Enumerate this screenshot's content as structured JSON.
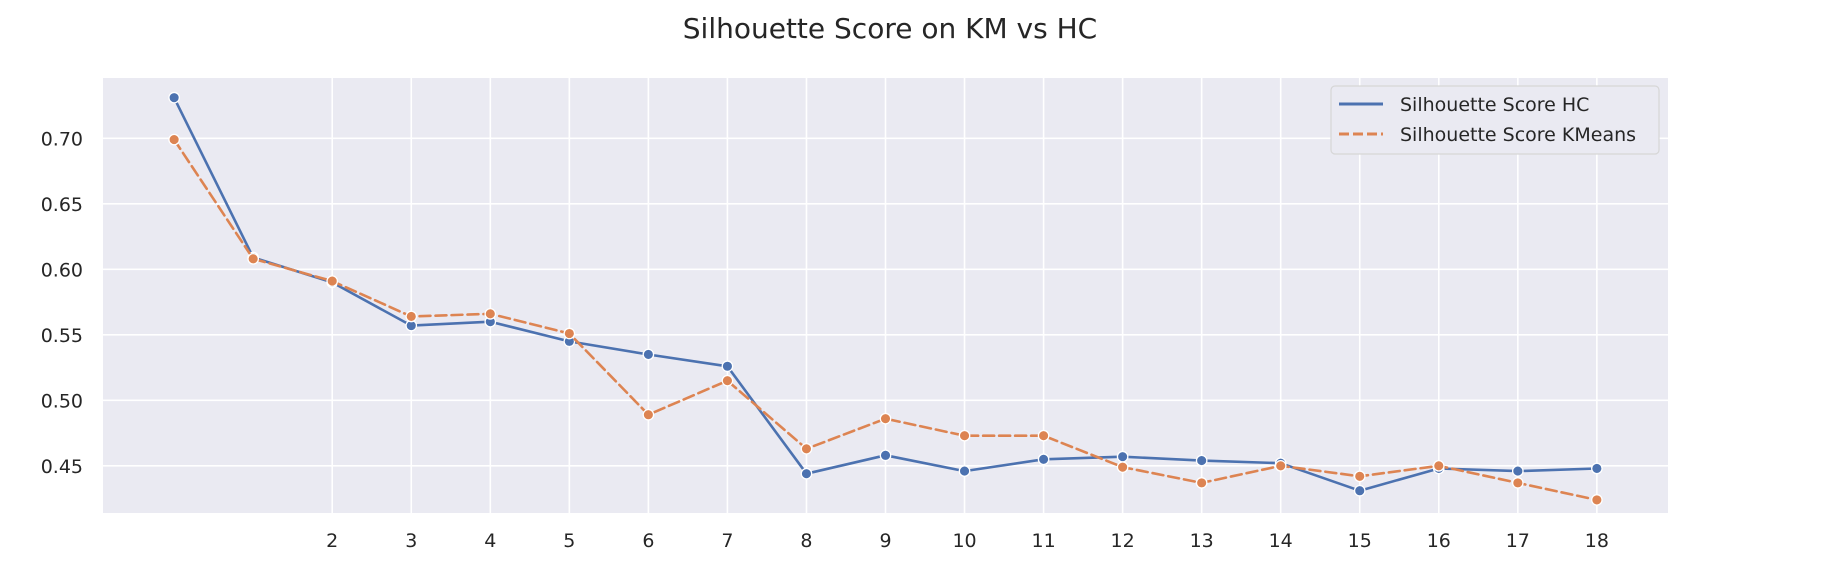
{
  "chart_data": {
    "type": "line",
    "title": "Silhouette Score on KM vs HC",
    "xlabel": "",
    "ylabel": "",
    "x": [
      0,
      1,
      2,
      3,
      4,
      5,
      6,
      7,
      8,
      9,
      10,
      11,
      12,
      13,
      14,
      15,
      16,
      17,
      18
    ],
    "x_tick_labels": [
      "2",
      "3",
      "4",
      "5",
      "6",
      "7",
      "8",
      "9",
      "10",
      "11",
      "12",
      "13",
      "14",
      "15",
      "16",
      "17",
      "18"
    ],
    "x_tick_values": [
      2,
      3,
      4,
      5,
      6,
      7,
      8,
      9,
      10,
      11,
      12,
      13,
      14,
      15,
      16,
      17,
      18
    ],
    "y_tick_labels": [
      "0.45",
      "0.50",
      "0.55",
      "0.60",
      "0.65",
      "0.70"
    ],
    "y_tick_values": [
      0.45,
      0.5,
      0.55,
      0.6,
      0.65,
      0.7
    ],
    "xlim": [
      -0.9,
      18.9
    ],
    "ylim": [
      0.414,
      0.746
    ],
    "grid": true,
    "legend_position": "top-right",
    "series": [
      {
        "name": "Silhouette Score HC",
        "color": "#4c72b0",
        "linestyle": "solid",
        "values": [
          0.731,
          0.609,
          0.59,
          0.557,
          0.56,
          0.545,
          0.535,
          0.526,
          0.444,
          0.458,
          0.446,
          0.455,
          0.457,
          0.454,
          0.452,
          0.431,
          0.448,
          0.446,
          0.448
        ]
      },
      {
        "name": "Silhouette Score KMeans",
        "color": "#dd8452",
        "linestyle": "dashed",
        "values": [
          0.699,
          0.608,
          0.591,
          0.564,
          0.566,
          0.551,
          0.489,
          0.515,
          0.463,
          0.486,
          0.473,
          0.473,
          0.449,
          0.437,
          0.45,
          0.442,
          0.45,
          0.437,
          0.424
        ]
      }
    ]
  }
}
